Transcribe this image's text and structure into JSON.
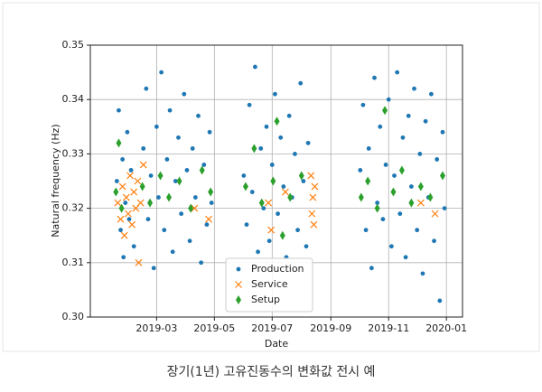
{
  "chart_data": {
    "type": "scatter",
    "xlabel": "Date",
    "ylabel": "Natural frequency (Hz)",
    "xlim": [
      "2018-12-21",
      "2020-01-18"
    ],
    "xticks": [
      {
        "value": "2019-03-01",
        "label": "2019-03"
      },
      {
        "value": "2019-05-01",
        "label": "2019-05"
      },
      {
        "value": "2019-07-01",
        "label": "2019-07"
      },
      {
        "value": "2019-09-01",
        "label": "2019-09"
      },
      {
        "value": "2019-11-01",
        "label": "2019-11"
      },
      {
        "value": "2020-01-01",
        "label": "2020-01"
      }
    ],
    "ylim": [
      0.3,
      0.35
    ],
    "yticks": [
      {
        "value": 0.3,
        "label": "0.30"
      },
      {
        "value": 0.31,
        "label": "0.31"
      },
      {
        "value": 0.32,
        "label": "0.32"
      },
      {
        "value": 0.33,
        "label": "0.33"
      },
      {
        "value": 0.34,
        "label": "0.34"
      },
      {
        "value": 0.35,
        "label": "0.35"
      }
    ],
    "grid": true,
    "legend": "lower center",
    "series": [
      {
        "name": "Production",
        "color": "#1f77b4",
        "marker": "dot",
        "x": [
          "2019-01-18",
          "2019-01-20",
          "2019-01-22",
          "2019-01-24",
          "2019-01-25",
          "2019-01-27",
          "2019-01-29",
          "2019-01-31",
          "2019-02-02",
          "2019-02-05",
          "2019-02-15",
          "2019-02-18",
          "2019-02-20",
          "2019-02-23",
          "2019-02-26",
          "2019-03-01",
          "2019-03-03",
          "2019-03-06",
          "2019-03-09",
          "2019-03-12",
          "2019-03-15",
          "2019-03-18",
          "2019-03-21",
          "2019-03-24",
          "2019-03-27",
          "2019-03-30",
          "2019-04-02",
          "2019-04-05",
          "2019-04-08",
          "2019-04-11",
          "2019-04-14",
          "2019-04-17",
          "2019-04-20",
          "2019-04-23",
          "2019-04-26",
          "2019-04-28",
          "2019-06-01",
          "2019-06-04",
          "2019-06-07",
          "2019-06-10",
          "2019-06-13",
          "2019-06-16",
          "2019-06-19",
          "2019-06-22",
          "2019-06-25",
          "2019-06-28",
          "2019-07-01",
          "2019-07-04",
          "2019-07-07",
          "2019-07-10",
          "2019-07-13",
          "2019-07-16",
          "2019-07-19",
          "2019-07-22",
          "2019-07-25",
          "2019-07-28",
          "2019-07-31",
          "2019-08-03",
          "2019-08-06",
          "2019-08-08",
          "2019-10-02",
          "2019-10-05",
          "2019-10-08",
          "2019-10-11",
          "2019-10-14",
          "2019-10-17",
          "2019-10-20",
          "2019-10-23",
          "2019-10-26",
          "2019-10-29",
          "2019-11-01",
          "2019-11-04",
          "2019-11-07",
          "2019-11-10",
          "2019-11-13",
          "2019-11-16",
          "2019-11-19",
          "2019-11-22",
          "2019-11-25",
          "2019-11-28",
          "2019-12-01",
          "2019-12-04",
          "2019-12-07",
          "2019-12-10",
          "2019-12-13",
          "2019-12-16",
          "2019-12-19",
          "2019-12-22",
          "2019-12-25",
          "2019-12-28",
          "2019-12-30"
        ],
        "values": [
          0.325,
          0.338,
          0.316,
          0.329,
          0.311,
          0.321,
          0.334,
          0.318,
          0.327,
          0.313,
          0.331,
          0.342,
          0.318,
          0.326,
          0.309,
          0.335,
          0.322,
          0.345,
          0.316,
          0.329,
          0.338,
          0.312,
          0.325,
          0.333,
          0.319,
          0.341,
          0.327,
          0.314,
          0.331,
          0.322,
          0.337,
          0.31,
          0.328,
          0.317,
          0.334,
          0.321,
          0.326,
          0.317,
          0.339,
          0.323,
          0.346,
          0.312,
          0.331,
          0.32,
          0.335,
          0.314,
          0.328,
          0.341,
          0.319,
          0.333,
          0.324,
          0.311,
          0.337,
          0.322,
          0.33,
          0.316,
          0.343,
          0.325,
          0.313,
          0.332,
          0.327,
          0.339,
          0.316,
          0.331,
          0.309,
          0.344,
          0.321,
          0.335,
          0.318,
          0.328,
          0.34,
          0.313,
          0.326,
          0.345,
          0.319,
          0.333,
          0.311,
          0.337,
          0.324,
          0.342,
          0.316,
          0.33,
          0.308,
          0.336,
          0.322,
          0.341,
          0.314,
          0.329,
          0.303,
          0.334,
          0.32
        ]
      },
      {
        "name": "Service",
        "color": "#ff7f0e",
        "marker": "x",
        "x": [
          "2019-01-19",
          "2019-01-22",
          "2019-01-24",
          "2019-01-26",
          "2019-01-28",
          "2019-01-30",
          "2019-02-01",
          "2019-02-03",
          "2019-02-05",
          "2019-02-07",
          "2019-02-09",
          "2019-02-10",
          "2019-02-12",
          "2019-02-15",
          "2019-04-10",
          "2019-04-25",
          "2019-06-27",
          "2019-06-30",
          "2019-07-15",
          "2019-08-11",
          "2019-08-12",
          "2019-08-13",
          "2019-08-14",
          "2019-08-15",
          "2019-12-05",
          "2019-12-20"
        ],
        "values": [
          0.321,
          0.318,
          0.324,
          0.315,
          0.322,
          0.319,
          0.326,
          0.317,
          0.323,
          0.32,
          0.325,
          0.31,
          0.321,
          0.328,
          0.32,
          0.318,
          0.321,
          0.316,
          0.323,
          0.326,
          0.319,
          0.322,
          0.317,
          0.324,
          0.321,
          0.319
        ]
      },
      {
        "name": "Setup",
        "color": "#2ca02c",
        "marker": "diamond",
        "x": [
          "2019-01-17",
          "2019-01-20",
          "2019-01-23",
          "2019-02-14",
          "2019-02-22",
          "2019-03-05",
          "2019-03-14",
          "2019-03-25",
          "2019-04-06",
          "2019-04-18",
          "2019-04-27",
          "2019-06-03",
          "2019-06-12",
          "2019-06-20",
          "2019-07-02",
          "2019-07-06",
          "2019-07-12",
          "2019-07-20",
          "2019-08-01",
          "2019-10-03",
          "2019-10-10",
          "2019-10-20",
          "2019-10-28",
          "2019-11-06",
          "2019-11-15",
          "2019-11-25",
          "2019-12-05",
          "2019-12-15",
          "2019-12-28"
        ],
        "values": [
          0.323,
          0.332,
          0.32,
          0.324,
          0.321,
          0.326,
          0.322,
          0.325,
          0.32,
          0.327,
          0.323,
          0.324,
          0.331,
          0.321,
          0.325,
          0.336,
          0.315,
          0.322,
          0.326,
          0.322,
          0.325,
          0.32,
          0.338,
          0.323,
          0.327,
          0.321,
          0.324,
          0.322,
          0.326
        ]
      }
    ]
  },
  "caption": "장기(1년) 고유진동수의 변화값 전시 예"
}
